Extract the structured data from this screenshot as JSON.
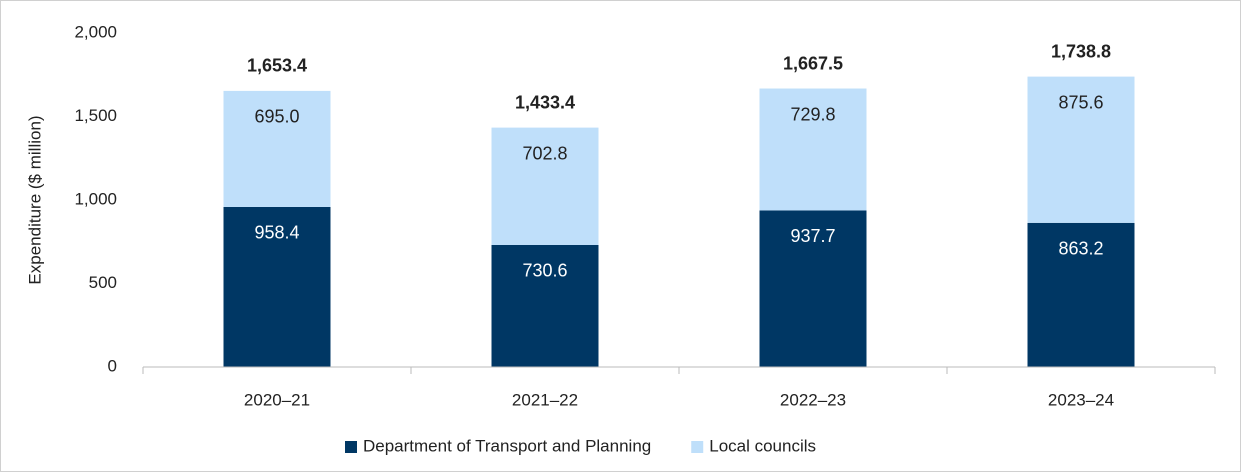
{
  "chart_data": {
    "type": "stacked_bar",
    "y_label": "Expenditure ($ million)",
    "categories": [
      "2020–21",
      "2021–22",
      "2022–23",
      "2023–24"
    ],
    "series": [
      {
        "name": "Department of Transport and Planning",
        "color": "#003764",
        "values": [
          958.4,
          730.6,
          937.7,
          863.2
        ]
      },
      {
        "name": "Local councils",
        "color": "#bfdffa",
        "values": [
          695.0,
          702.8,
          729.8,
          875.6
        ],
        "value_labels": [
          "695.0",
          "702.8",
          "729.8",
          "875.6"
        ]
      }
    ],
    "totals": [
      1653.4,
      1433.4,
      1667.5,
      1738.8
    ],
    "total_labels": [
      "1,653.4",
      "1,433.4",
      "1,667.5",
      "1,738.8"
    ],
    "ylim": [
      0,
      2000
    ],
    "yticks": [
      0,
      500,
      {
        "value": 1000,
        "label": "1,000"
      },
      {
        "value": 1500,
        "label": "1,500"
      },
      {
        "value": 2000,
        "label": "2,000"
      }
    ],
    "grid": false,
    "legend": "bottom"
  }
}
